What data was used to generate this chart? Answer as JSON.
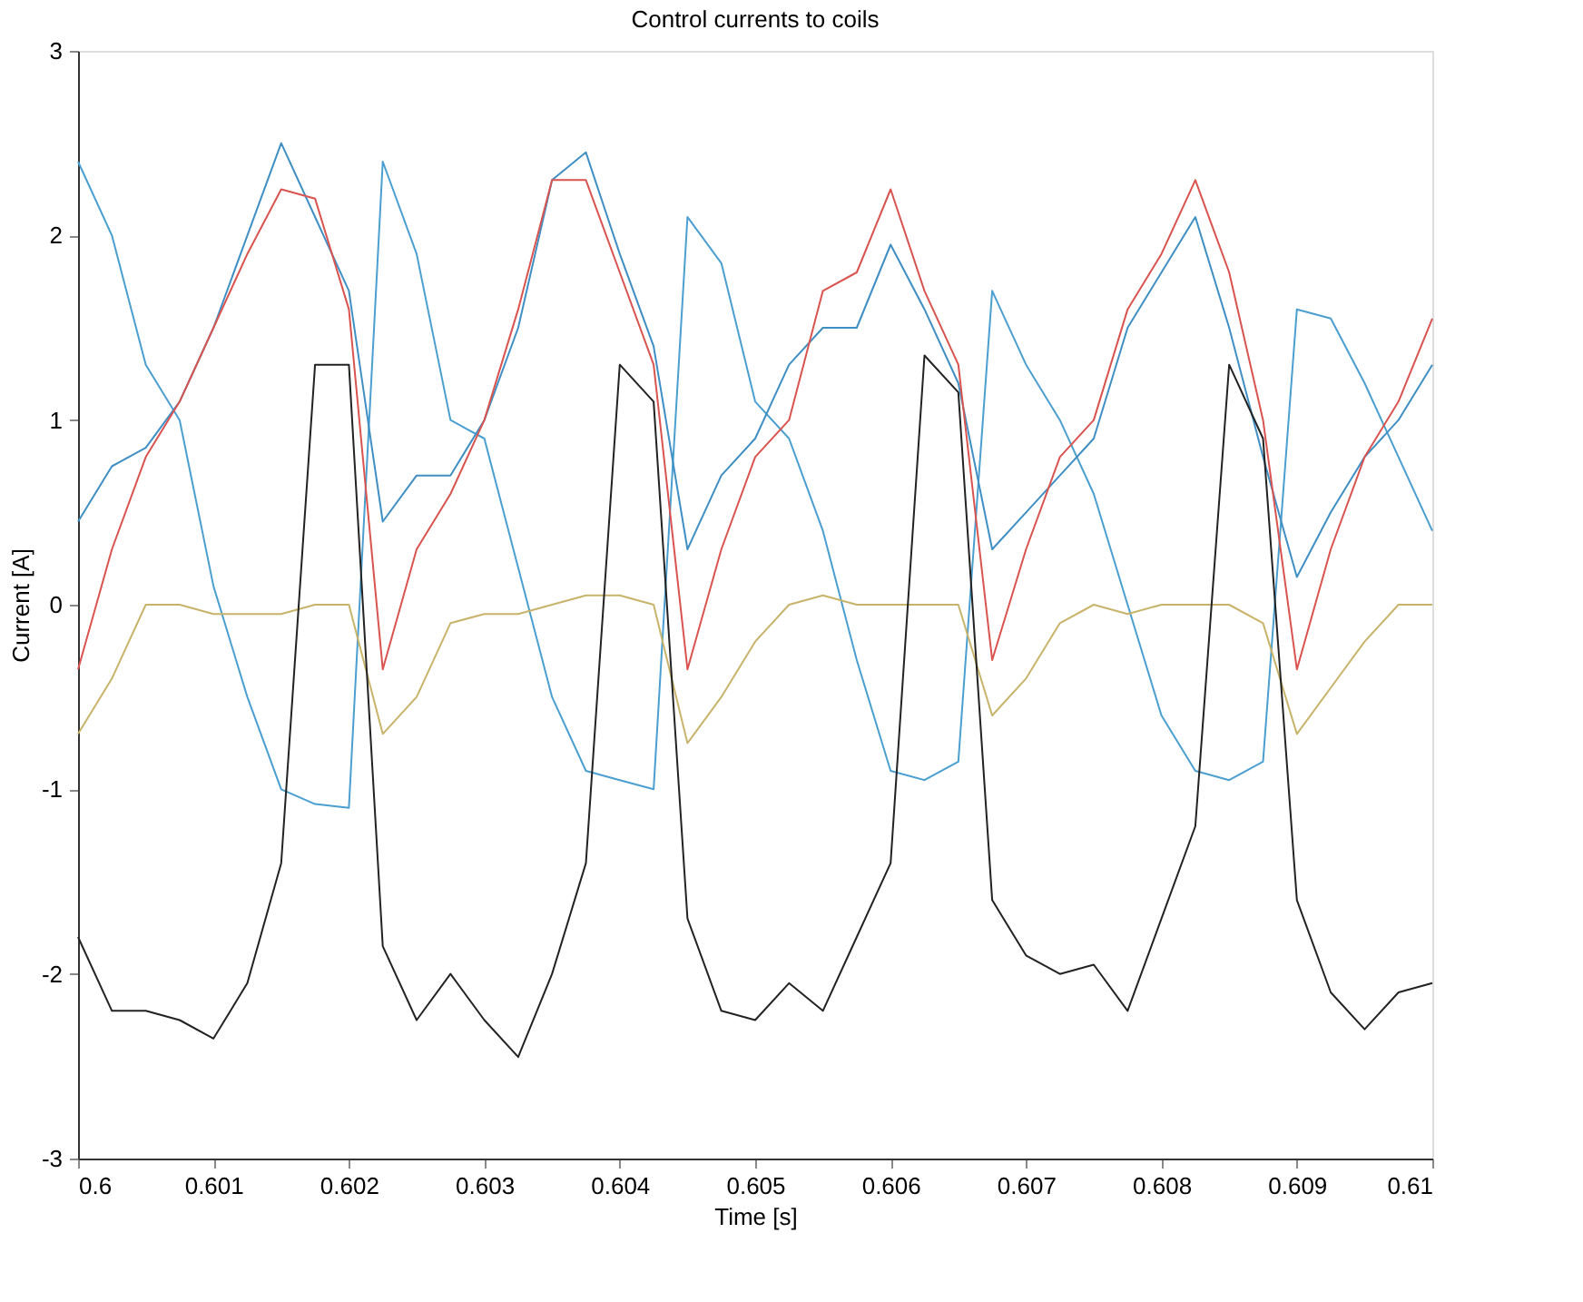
{
  "chart_data": {
    "type": "line",
    "title": "Control currents to coils",
    "xlabel": "Time [s]",
    "ylabel": "Current [A]",
    "x": [
      0.6,
      0.60025,
      0.6005,
      0.60075,
      0.601,
      0.60125,
      0.6015,
      0.60175,
      0.602,
      0.60225,
      0.6025,
      0.60275,
      0.603,
      0.60325,
      0.6035,
      0.60375,
      0.604,
      0.60425,
      0.6045,
      0.60475,
      0.605,
      0.60525,
      0.6055,
      0.60575,
      0.606,
      0.60625,
      0.6065,
      0.60675,
      0.607,
      0.60725,
      0.6075,
      0.60775,
      0.608,
      0.60825,
      0.6085,
      0.60875,
      0.609,
      0.60925,
      0.6095,
      0.60975,
      0.61
    ],
    "series": [
      {
        "color": "#4a9fd0",
        "values": [
          2.4,
          2.0,
          1.3,
          1.0,
          0.1,
          -0.5,
          -1.0,
          -1.08,
          -1.1,
          2.4,
          1.9,
          1.0,
          0.9,
          0.2,
          -0.5,
          -0.9,
          -0.95,
          -1.0,
          2.1,
          1.85,
          1.1,
          0.9,
          0.4,
          -0.3,
          -0.9,
          -0.95,
          -0.85,
          1.7,
          1.3,
          1.0,
          0.6,
          0.0,
          -0.6,
          -0.9,
          -0.95,
          -0.85,
          1.6,
          1.55,
          1.2,
          0.8,
          0.4
        ]
      },
      {
        "color": "#3f8fc4",
        "values": [
          0.45,
          0.75,
          0.85,
          1.1,
          1.5,
          2.0,
          2.5,
          2.1,
          1.7,
          0.45,
          0.7,
          0.7,
          1.0,
          1.5,
          2.3,
          2.45,
          1.9,
          1.4,
          0.3,
          0.7,
          0.9,
          1.3,
          1.5,
          1.5,
          1.95,
          1.6,
          1.2,
          0.3,
          0.5,
          0.7,
          0.9,
          1.5,
          1.8,
          2.1,
          1.5,
          0.8,
          0.15,
          0.5,
          0.8,
          1.0,
          1.3
        ]
      },
      {
        "color": "#d9534f",
        "values": [
          -0.35,
          0.3,
          0.8,
          1.1,
          1.5,
          1.9,
          2.25,
          2.2,
          1.6,
          -0.35,
          0.3,
          0.6,
          1.0,
          1.6,
          2.3,
          2.3,
          1.8,
          1.3,
          -0.35,
          0.3,
          0.8,
          1.0,
          1.7,
          1.8,
          2.25,
          1.7,
          1.3,
          -0.3,
          0.3,
          0.8,
          1.0,
          1.6,
          1.9,
          2.3,
          1.8,
          1.0,
          -0.35,
          0.3,
          0.8,
          1.1,
          1.55
        ]
      },
      {
        "color": "#c8b36a",
        "values": [
          -0.7,
          -0.4,
          0.0,
          0.0,
          -0.05,
          -0.05,
          -0.05,
          0.0,
          0.0,
          -0.7,
          -0.5,
          -0.1,
          -0.05,
          -0.05,
          0.0,
          0.05,
          0.05,
          0.0,
          -0.75,
          -0.5,
          -0.2,
          0.0,
          0.05,
          0.0,
          0.0,
          0.0,
          0.0,
          -0.6,
          -0.4,
          -0.1,
          0.0,
          -0.05,
          0.0,
          0.0,
          0.0,
          -0.1,
          -0.7,
          -0.45,
          -0.2,
          0.0,
          0.0
        ]
      },
      {
        "color": "#222222",
        "values": [
          -1.8,
          -2.2,
          -2.2,
          -2.25,
          -2.35,
          -2.05,
          -1.4,
          1.3,
          1.3,
          -1.85,
          -2.25,
          -2.0,
          -2.25,
          -2.45,
          -2.0,
          -1.4,
          1.3,
          1.1,
          -1.7,
          -2.2,
          -2.25,
          -2.05,
          -2.2,
          -1.8,
          -1.4,
          1.35,
          1.15,
          -1.6,
          -1.9,
          -2.0,
          -1.95,
          -2.2,
          -1.7,
          -1.2,
          1.3,
          0.9,
          -1.6,
          -2.1,
          -2.3,
          -2.1,
          -2.05
        ]
      }
    ],
    "xlim": [
      0.6,
      0.61
    ],
    "xticks": [
      0.6,
      0.601,
      0.602,
      0.603,
      0.604,
      0.605,
      0.606,
      0.607,
      0.608,
      0.609,
      0.61
    ],
    "ylim": [
      -3,
      3
    ],
    "yticks": [
      -3,
      -2,
      -1,
      0,
      1,
      2,
      3
    ],
    "grid": false,
    "legend": false,
    "marker": "none",
    "line_style": "solid"
  }
}
